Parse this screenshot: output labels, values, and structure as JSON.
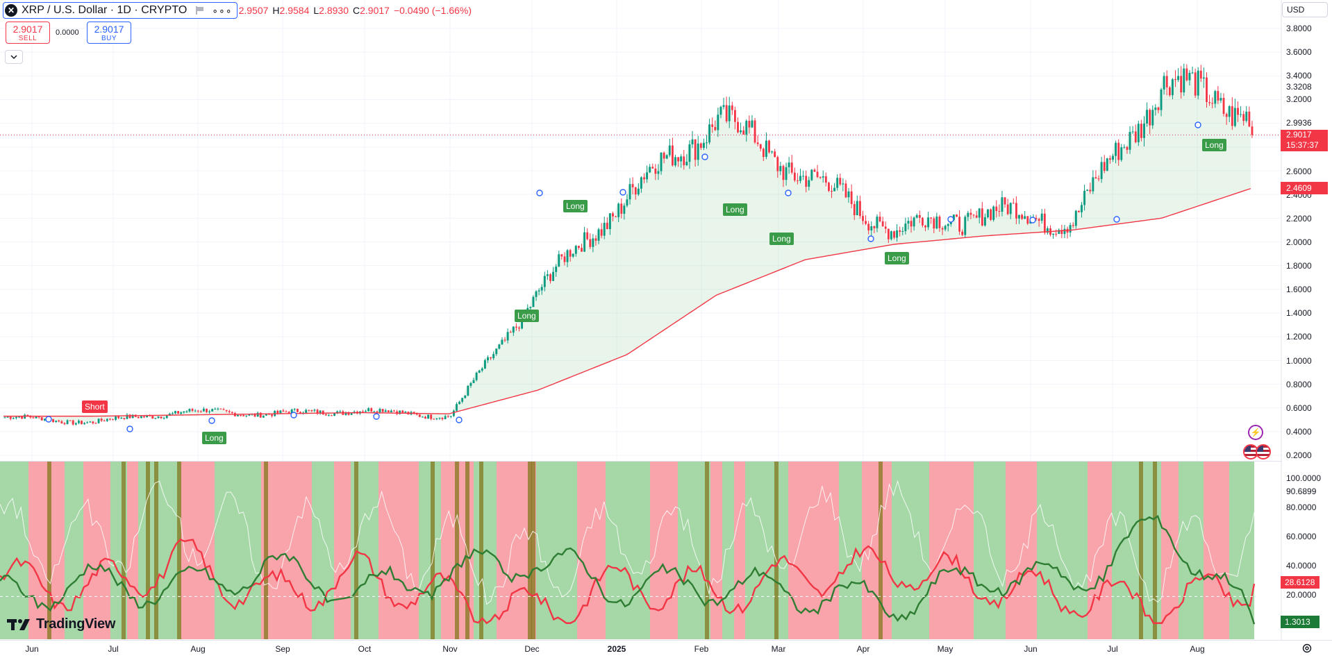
{
  "header": {
    "symbol_logo": "✕",
    "symbol_title": "XRP / U.S. Dollar · 1D · CRYPTO",
    "ohlc": [
      {
        "key": "",
        "value": "2.9507"
      },
      {
        "key": "H",
        "value": "2.9584"
      },
      {
        "key": "L",
        "value": "2.8930"
      },
      {
        "key": "C",
        "value": "2.9017"
      },
      {
        "key": "",
        "value": "−0.0490 (−1.66%)"
      }
    ],
    "more_icon": "more-icon",
    "flag_icon": "flag-icon",
    "currency": "USD"
  },
  "trade": {
    "sell_price": "2.9017",
    "sell_label": "SELL",
    "spread": "0.0000",
    "buy_price": "2.9017",
    "buy_label": "BUY"
  },
  "price_axis": {
    "labels": [
      "3.8000",
      "3.6000",
      "3.4000",
      "3.3208",
      "3.2000",
      "2.9936",
      "2.6000",
      "2.4000",
      "2.2000",
      "2.0000",
      "1.8000",
      "1.6000",
      "1.4000",
      "1.2000",
      "1.0000",
      "0.8000",
      "0.6000",
      "0.4000",
      "0.2000"
    ],
    "current_price": "2.9017",
    "countdown": "15:37:37",
    "ma_value": "2.4609"
  },
  "indicator_axis": {
    "labels": [
      "100.0000",
      "90.6899",
      "80.0000",
      "60.0000",
      "40.0000",
      "20.0000"
    ],
    "red_value": "28.6128",
    "green_value": "1.3013"
  },
  "time_axis": {
    "labels": [
      "Jun",
      "Jul",
      "Aug",
      "Sep",
      "Oct",
      "Nov",
      "Dec",
      "2025",
      "Feb",
      "Mar",
      "Apr",
      "May",
      "Jun",
      "Jul",
      "Aug"
    ]
  },
  "signals": [
    "Short",
    "Long",
    "Long",
    "Long",
    "Long",
    "Long",
    "Long",
    "Long"
  ],
  "watermark": "TradingView",
  "colors": {
    "up": "#089981",
    "down": "#f23645",
    "ma": "#f23645",
    "long": "#3a9b49",
    "adx_green": "#2e7d32",
    "adx_red": "#f23645"
  },
  "chart_data": {
    "type": "line",
    "title": "XRP / U.S. Dollar · 1D · CRYPTO",
    "x": [
      "Jun",
      "Jul",
      "Aug",
      "Sep",
      "Oct",
      "Nov",
      "Dec",
      "2025",
      "Feb",
      "Mar",
      "Apr",
      "May",
      "Jun",
      "Jul",
      "Aug"
    ],
    "series": [
      {
        "values": [
          0.52,
          0.48,
          0.57,
          0.55,
          0.58,
          0.53,
          1.6,
          2.4,
          3.05,
          2.55,
          2.1,
          2.25,
          2.18,
          3.35,
          3.1
        ]
      },
      {
        "values": [
          0.53,
          0.53,
          0.54,
          0.55,
          0.56,
          0.55,
          0.75,
          1.05,
          1.55,
          1.85,
          1.98,
          2.05,
          2.1,
          2.2,
          2.45
        ]
      }
    ],
    "ylim": [
      0.2,
      3.8
    ],
    "last": {
      "open": 2.9507,
      "high": 2.9584,
      "low": 2.893,
      "close": 2.9017
    },
    "indicator": {
      "ylim": [
        0,
        100
      ],
      "series": [
        {
          "values": [
            30,
            25,
            45,
            20,
            35,
            18,
            10,
            30,
            22,
            35,
            40,
            28,
            20,
            15,
            28.6128
          ]
        },
        {
          "values": [
            20,
            30,
            25,
            40,
            22,
            35,
            45,
            25,
            28,
            22,
            15,
            35,
            30,
            70,
            1.3013
          ]
        }
      ]
    }
  }
}
